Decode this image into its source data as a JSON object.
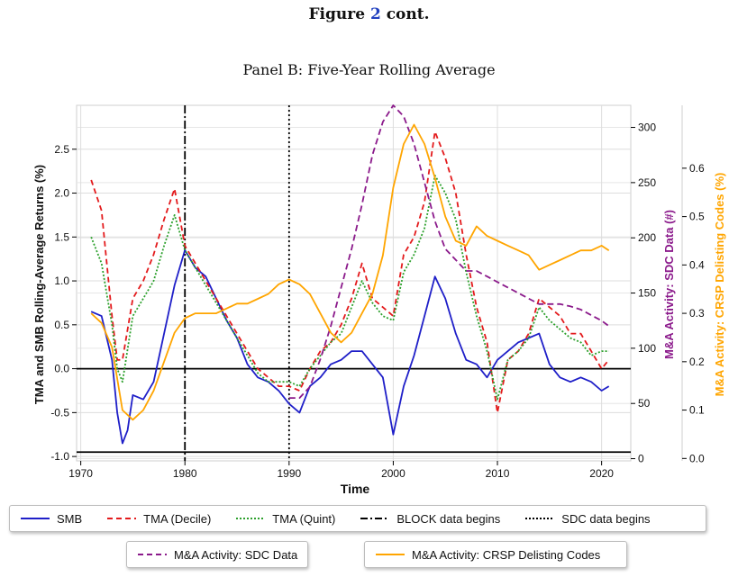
{
  "figure": {
    "prefix": "Figure",
    "number": "2",
    "suffix": "cont."
  },
  "panel_title": "Panel B: Five-Year Rolling Average",
  "colors": {
    "smb": "#1f1fc8",
    "tma_decile": "#e31a1c",
    "tma_quint": "#2ca02c",
    "sdc": "#8b1a8b",
    "crsp": "#ffa500",
    "left_label": "#000000",
    "sdc_label": "#8b1a8b",
    "crsp_label": "#ffa500"
  },
  "legend1": [
    {
      "key": "smb",
      "label": "SMB",
      "style": "solid",
      "color": "#1f1fc8"
    },
    {
      "key": "tma_decile",
      "label": "TMA (Decile)",
      "style": "dashed",
      "color": "#e31a1c"
    },
    {
      "key": "tma_quint",
      "label": "TMA (Quint)",
      "style": "dotted",
      "color": "#2ca02c"
    },
    {
      "key": "block",
      "label": "BLOCK data begins",
      "style": "dashdot",
      "color": "#000000"
    },
    {
      "key": "sdc_begin",
      "label": "SDC data begins",
      "style": "dotted",
      "color": "#000000"
    }
  ],
  "legend2": [
    {
      "key": "sdc",
      "label": "M&A Activity: SDC Data",
      "style": "dashed",
      "color": "#8b1a8b"
    },
    {
      "key": "crsp",
      "label": "M&A Activity: CRSP Delisting Codes",
      "style": "solid",
      "color": "#ffa500"
    }
  ],
  "chart_data": {
    "type": "line",
    "title": "Panel B: Five-Year Rolling Average",
    "xlabel": "Time",
    "ylabel": "TMA and SMB Rolling-Average Returns (%)",
    "y2label": "M&A Activity: SDC Data (#)",
    "y3label": "M&A Activity: CRSP Delisting Codes (%)",
    "xlim": [
      1969.6,
      2022.8
    ],
    "ylim": [
      -1.05,
      3.0
    ],
    "y2lim": [
      -2,
      320
    ],
    "y3lim": [
      -0.005,
      0.73
    ],
    "xticks": [
      "1970",
      "1980",
      "1990",
      "2000",
      "2010",
      "2020"
    ],
    "yticks": [
      "-1.0",
      "-0.5",
      "0.0",
      "0.5",
      "1.0",
      "1.5",
      "2.0",
      "2.5"
    ],
    "y2ticks": [
      "0",
      "50",
      "100",
      "150",
      "200",
      "250",
      "300"
    ],
    "y3ticks": [
      "0.0",
      "0.1",
      "0.2",
      "0.3",
      "0.4",
      "0.5",
      "0.6"
    ],
    "grid": true,
    "hlines": [
      0.0,
      -0.95
    ],
    "vlines": [
      {
        "x": 1980,
        "style": "dashdot"
      },
      {
        "x": 1990,
        "style": "dotted"
      }
    ],
    "series": [
      {
        "name": "SMB",
        "axis": "left",
        "x": [
          1971,
          1972,
          1973,
          1973.5,
          1974,
          1974.5,
          1975,
          1976,
          1977,
          1978,
          1979,
          1980,
          1981,
          1982,
          1983,
          1984,
          1985,
          1986,
          1987,
          1988,
          1989,
          1990,
          1991,
          1992,
          1993,
          1994,
          1995,
          1996,
          1997,
          1998,
          1999,
          2000,
          2001,
          2002,
          2003,
          2004,
          2005,
          2006,
          2007,
          2008,
          2009,
          2010,
          2011,
          2012,
          2013,
          2014,
          2015,
          2016,
          2017,
          2018,
          2019,
          2020,
          2020.7
        ],
        "y": [
          0.65,
          0.6,
          0.1,
          -0.5,
          -0.85,
          -0.7,
          -0.3,
          -0.35,
          -0.15,
          0.4,
          0.95,
          1.35,
          1.15,
          1.05,
          0.8,
          0.55,
          0.35,
          0.05,
          -0.1,
          -0.15,
          -0.25,
          -0.4,
          -0.5,
          -0.2,
          -0.1,
          0.05,
          0.1,
          0.2,
          0.2,
          0.05,
          -0.1,
          -0.75,
          -0.2,
          0.15,
          0.6,
          1.05,
          0.8,
          0.4,
          0.1,
          0.05,
          -0.1,
          0.1,
          0.2,
          0.3,
          0.35,
          0.4,
          0.05,
          -0.1,
          -0.15,
          -0.1,
          -0.15,
          -0.25,
          -0.2
        ]
      },
      {
        "name": "TMA (Decile)",
        "axis": "left",
        "x": [
          1971,
          1972,
          1973,
          1973.5,
          1974,
          1975,
          1976,
          1977,
          1978,
          1979,
          1980,
          1981,
          1982,
          1983,
          1984,
          1985,
          1986,
          1987,
          1988,
          1989,
          1990,
          1991,
          1992,
          1993,
          1994,
          1995,
          1996,
          1997,
          1998,
          1999,
          2000,
          2001,
          2002,
          2003,
          2004,
          2005,
          2006,
          2007,
          2008,
          2009,
          2010,
          2011,
          2012,
          2013,
          2014,
          2015,
          2016,
          2017,
          2018,
          2019,
          2020,
          2020.7
        ],
        "y": [
          2.15,
          1.8,
          0.6,
          0.1,
          0.1,
          0.8,
          1.0,
          1.3,
          1.7,
          2.05,
          1.4,
          1.2,
          1.0,
          0.8,
          0.6,
          0.4,
          0.2,
          0.0,
          -0.1,
          -0.2,
          -0.2,
          -0.25,
          0.0,
          0.2,
          0.3,
          0.5,
          0.8,
          1.2,
          0.8,
          0.7,
          0.6,
          1.3,
          1.5,
          1.9,
          2.7,
          2.4,
          2.0,
          1.3,
          0.7,
          0.3,
          -0.5,
          0.1,
          0.2,
          0.4,
          0.8,
          0.7,
          0.6,
          0.4,
          0.4,
          0.2,
          0.0,
          0.1
        ]
      },
      {
        "name": "TMA (Quint)",
        "axis": "left",
        "x": [
          1971,
          1972,
          1973,
          1973.5,
          1974,
          1975,
          1976,
          1977,
          1978,
          1979,
          1980,
          1981,
          1982,
          1983,
          1984,
          1985,
          1986,
          1987,
          1988,
          1989,
          1990,
          1991,
          1992,
          1993,
          1994,
          1995,
          1996,
          1997,
          1998,
          1999,
          2000,
          2001,
          2002,
          2003,
          2004,
          2005,
          2006,
          2007,
          2008,
          2009,
          2010,
          2011,
          2012,
          2013,
          2014,
          2015,
          2016,
          2017,
          2018,
          2019,
          2020,
          2020.7
        ],
        "y": [
          1.5,
          1.2,
          0.5,
          0.0,
          -0.15,
          0.6,
          0.8,
          1.0,
          1.4,
          1.75,
          1.35,
          1.15,
          0.95,
          0.75,
          0.55,
          0.35,
          0.15,
          -0.05,
          -0.15,
          -0.15,
          -0.15,
          -0.2,
          0.0,
          0.15,
          0.3,
          0.4,
          0.7,
          1.0,
          0.75,
          0.6,
          0.55,
          1.1,
          1.3,
          1.6,
          2.2,
          2.0,
          1.7,
          1.1,
          0.6,
          0.2,
          -0.35,
          0.1,
          0.2,
          0.35,
          0.7,
          0.55,
          0.45,
          0.35,
          0.3,
          0.15,
          0.2,
          0.2
        ]
      },
      {
        "name": "M&A Activity: SDC Data",
        "axis": "right_sdc",
        "x": [
          1990,
          1991,
          1992,
          1993,
          1994,
          1995,
          1996,
          1997,
          1998,
          1999,
          2000,
          2001,
          2002,
          2003,
          2004,
          2005,
          2006,
          2007,
          2008,
          2009,
          2010,
          2011,
          2012,
          2013,
          2014,
          2015,
          2016,
          2017,
          2018,
          2019,
          2020,
          2020.7
        ],
        "y": [
          55,
          55,
          65,
          90,
          120,
          155,
          190,
          230,
          275,
          305,
          320,
          310,
          285,
          250,
          215,
          190,
          180,
          170,
          170,
          165,
          160,
          155,
          150,
          145,
          140,
          140,
          140,
          138,
          135,
          130,
          125,
          120
        ]
      },
      {
        "name": "M&A Activity: CRSP Delisting Codes",
        "axis": "right_crsp",
        "x": [
          1971,
          1972,
          1973,
          1974,
          1975,
          1976,
          1977,
          1978,
          1979,
          1980,
          1981,
          1982,
          1983,
          1984,
          1985,
          1986,
          1987,
          1988,
          1989,
          1990,
          1991,
          1992,
          1993,
          1994,
          1995,
          1996,
          1997,
          1998,
          1999,
          2000,
          2001,
          2002,
          2003,
          2004,
          2005,
          2006,
          2007,
          2008,
          2009,
          2010,
          2011,
          2012,
          2013,
          2014,
          2015,
          2016,
          2017,
          2018,
          2019,
          2020,
          2020.7
        ],
        "y": [
          0.3,
          0.28,
          0.23,
          0.1,
          0.08,
          0.1,
          0.14,
          0.2,
          0.26,
          0.29,
          0.3,
          0.3,
          0.3,
          0.31,
          0.32,
          0.32,
          0.33,
          0.34,
          0.36,
          0.37,
          0.36,
          0.34,
          0.3,
          0.26,
          0.24,
          0.26,
          0.3,
          0.34,
          0.42,
          0.56,
          0.65,
          0.69,
          0.65,
          0.58,
          0.5,
          0.45,
          0.44,
          0.48,
          0.46,
          0.45,
          0.44,
          0.43,
          0.42,
          0.39,
          0.4,
          0.41,
          0.42,
          0.43,
          0.43,
          0.44,
          0.43
        ]
      }
    ]
  }
}
